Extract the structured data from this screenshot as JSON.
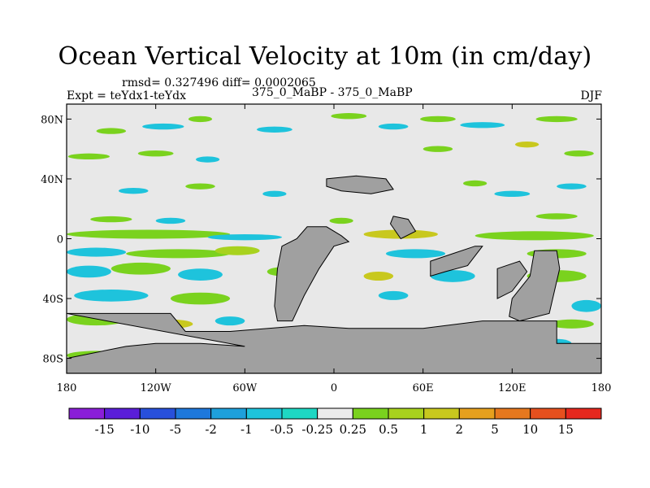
{
  "title": "Ocean Vertical Velocity at 10m (in cm/day)",
  "stats": "rmsd= 0.327496 diff= 0.0002065",
  "experiment": "Expt = teYdx1-teYdx",
  "comparison": "375_0_MaBP - 375_0_MaBP",
  "season": "DJF",
  "y_axis": [
    {
      "label": "80N",
      "lat": 80
    },
    {
      "label": "40N",
      "lat": 40
    },
    {
      "label": "0",
      "lat": 0
    },
    {
      "label": "40S",
      "lat": -40
    },
    {
      "label": "80S",
      "lat": -80
    }
  ],
  "x_axis": [
    {
      "label": "180",
      "lon": -180
    },
    {
      "label": "120W",
      "lon": -120
    },
    {
      "label": "60W",
      "lon": -60
    },
    {
      "label": "0",
      "lon": 0
    },
    {
      "label": "60E",
      "lon": 60
    },
    {
      "label": "120E",
      "lon": 120
    },
    {
      "label": "180",
      "lon": 180
    }
  ],
  "colorbar": {
    "colors": [
      "#8a1ed8",
      "#5a1ed8",
      "#2850dc",
      "#1e78dc",
      "#1ea0dc",
      "#1ec3dc",
      "#1ed7c3",
      "#ebebeb",
      "#7ad21e",
      "#a8d21e",
      "#c8c81e",
      "#e6a01e",
      "#e6781e",
      "#e6501e",
      "#e6281e"
    ],
    "labels": [
      "-15",
      "-10",
      "-5",
      "-2",
      "-1",
      "-0.5",
      "-0.25",
      "0.25",
      "0.5",
      "1",
      "2",
      "5",
      "10",
      "15"
    ]
  },
  "map": {
    "lon_range": [
      -180,
      180
    ],
    "lat_range": [
      -90,
      90
    ],
    "background_color": "#e8e8e8",
    "land_color": "#a0a0a0",
    "colors": {
      "cyan": "#1ec3dc",
      "teal": "#1ed7c3",
      "blue": "#1ea0dc",
      "green": "#7ad21e",
      "lime": "#a8d21e",
      "yellow": "#c8c81e"
    },
    "patches": [
      {
        "color": "green",
        "lon": -150,
        "lat": 72,
        "rx": 10,
        "ry": 2
      },
      {
        "color": "cyan",
        "lon": -115,
        "lat": 75,
        "rx": 14,
        "ry": 2
      },
      {
        "color": "green",
        "lon": -90,
        "lat": 80,
        "rx": 8,
        "ry": 2
      },
      {
        "color": "cyan",
        "lon": -40,
        "lat": 73,
        "rx": 12,
        "ry": 2
      },
      {
        "color": "green",
        "lon": 10,
        "lat": 82,
        "rx": 12,
        "ry": 2
      },
      {
        "color": "cyan",
        "lon": 40,
        "lat": 75,
        "rx": 10,
        "ry": 2
      },
      {
        "color": "green",
        "lon": 70,
        "lat": 80,
        "rx": 12,
        "ry": 2
      },
      {
        "color": "cyan",
        "lon": 100,
        "lat": 76,
        "rx": 15,
        "ry": 2
      },
      {
        "color": "green",
        "lon": 150,
        "lat": 80,
        "rx": 14,
        "ry": 2
      },
      {
        "color": "green",
        "lon": -165,
        "lat": 55,
        "rx": 14,
        "ry": 2
      },
      {
        "color": "green",
        "lon": -120,
        "lat": 57,
        "rx": 12,
        "ry": 2
      },
      {
        "color": "cyan",
        "lon": -85,
        "lat": 53,
        "rx": 8,
        "ry": 2
      },
      {
        "color": "green",
        "lon": 70,
        "lat": 60,
        "rx": 10,
        "ry": 2
      },
      {
        "color": "yellow",
        "lon": 130,
        "lat": 63,
        "rx": 8,
        "ry": 2
      },
      {
        "color": "green",
        "lon": 165,
        "lat": 57,
        "rx": 10,
        "ry": 2
      },
      {
        "color": "cyan",
        "lon": -135,
        "lat": 32,
        "rx": 10,
        "ry": 2
      },
      {
        "color": "green",
        "lon": -90,
        "lat": 35,
        "rx": 10,
        "ry": 2
      },
      {
        "color": "cyan",
        "lon": -40,
        "lat": 30,
        "rx": 8,
        "ry": 2
      },
      {
        "color": "green",
        "lon": 95,
        "lat": 37,
        "rx": 8,
        "ry": 2
      },
      {
        "color": "cyan",
        "lon": 120,
        "lat": 30,
        "rx": 12,
        "ry": 2
      },
      {
        "color": "cyan",
        "lon": 160,
        "lat": 35,
        "rx": 10,
        "ry": 2
      },
      {
        "color": "green",
        "lon": -150,
        "lat": 13,
        "rx": 14,
        "ry": 2
      },
      {
        "color": "cyan",
        "lon": -110,
        "lat": 12,
        "rx": 10,
        "ry": 2
      },
      {
        "color": "green",
        "lon": 5,
        "lat": 12,
        "rx": 8,
        "ry": 2
      },
      {
        "color": "green",
        "lon": 150,
        "lat": 15,
        "rx": 14,
        "ry": 2
      },
      {
        "color": "green",
        "lon": -125,
        "lat": 3,
        "rx": 55,
        "ry": 3
      },
      {
        "color": "cyan",
        "lon": -60,
        "lat": 1,
        "rx": 25,
        "ry": 2
      },
      {
        "color": "yellow",
        "lon": 45,
        "lat": 3,
        "rx": 25,
        "ry": 3
      },
      {
        "color": "green",
        "lon": 135,
        "lat": 2,
        "rx": 40,
        "ry": 3
      },
      {
        "color": "cyan",
        "lon": -160,
        "lat": -9,
        "rx": 20,
        "ry": 3
      },
      {
        "color": "green",
        "lon": -105,
        "lat": -10,
        "rx": 35,
        "ry": 3
      },
      {
        "color": "lime",
        "lon": -65,
        "lat": -8,
        "rx": 15,
        "ry": 3
      },
      {
        "color": "cyan",
        "lon": 55,
        "lat": -10,
        "rx": 20,
        "ry": 3
      },
      {
        "color": "green",
        "lon": 150,
        "lat": -10,
        "rx": 20,
        "ry": 3
      },
      {
        "color": "cyan",
        "lon": -165,
        "lat": -22,
        "rx": 15,
        "ry": 4
      },
      {
        "color": "green",
        "lon": -130,
        "lat": -20,
        "rx": 20,
        "ry": 4
      },
      {
        "color": "cyan",
        "lon": -90,
        "lat": -24,
        "rx": 15,
        "ry": 4
      },
      {
        "color": "green",
        "lon": -35,
        "lat": -22,
        "rx": 10,
        "ry": 3
      },
      {
        "color": "yellow",
        "lon": 30,
        "lat": -25,
        "rx": 10,
        "ry": 3
      },
      {
        "color": "cyan",
        "lon": 80,
        "lat": -25,
        "rx": 15,
        "ry": 4
      },
      {
        "color": "green",
        "lon": 150,
        "lat": -25,
        "rx": 20,
        "ry": 4
      },
      {
        "color": "cyan",
        "lon": -150,
        "lat": -38,
        "rx": 25,
        "ry": 4
      },
      {
        "color": "green",
        "lon": -90,
        "lat": -40,
        "rx": 20,
        "ry": 4
      },
      {
        "color": "cyan",
        "lon": 40,
        "lat": -38,
        "rx": 10,
        "ry": 3
      },
      {
        "color": "cyan",
        "lon": 170,
        "lat": -45,
        "rx": 10,
        "ry": 4
      },
      {
        "color": "green",
        "lon": -160,
        "lat": -54,
        "rx": 20,
        "ry": 4
      },
      {
        "color": "yellow",
        "lon": -110,
        "lat": -57,
        "rx": 15,
        "ry": 3
      },
      {
        "color": "cyan",
        "lon": -70,
        "lat": -55,
        "rx": 10,
        "ry": 3
      },
      {
        "color": "green",
        "lon": 160,
        "lat": -57,
        "rx": 15,
        "ry": 3
      },
      {
        "color": "green",
        "lon": -160,
        "lat": -78,
        "rx": 20,
        "ry": 3
      },
      {
        "color": "cyan",
        "lon": 150,
        "lat": -70,
        "rx": 10,
        "ry": 3
      }
    ],
    "land": [
      [
        [
          -18,
          8
        ],
        [
          -5,
          8
        ],
        [
          5,
          2
        ],
        [
          10,
          -2
        ],
        [
          0,
          -5
        ],
        [
          -10,
          -20
        ],
        [
          -20,
          -38
        ],
        [
          -28,
          -55
        ],
        [
          -38,
          -55
        ],
        [
          -40,
          -45
        ],
        [
          -38,
          -20
        ],
        [
          -35,
          -5
        ],
        [
          -25,
          0
        ]
      ],
      [
        [
          -5,
          40
        ],
        [
          15,
          42
        ],
        [
          35,
          40
        ],
        [
          40,
          33
        ],
        [
          25,
          30
        ],
        [
          5,
          32
        ],
        [
          -5,
          35
        ]
      ],
      [
        [
          40,
          15
        ],
        [
          50,
          13
        ],
        [
          55,
          5
        ],
        [
          45,
          0
        ],
        [
          38,
          10
        ]
      ],
      [
        [
          65,
          -15
        ],
        [
          80,
          -10
        ],
        [
          95,
          -5
        ],
        [
          100,
          -5
        ],
        [
          90,
          -18
        ],
        [
          75,
          -22
        ],
        [
          65,
          -25
        ]
      ],
      [
        [
          110,
          -20
        ],
        [
          125,
          -15
        ],
        [
          130,
          -22
        ],
        [
          120,
          -35
        ],
        [
          110,
          -40
        ]
      ],
      [
        [
          135,
          -8
        ],
        [
          150,
          -8
        ],
        [
          152,
          -20
        ],
        [
          145,
          -50
        ],
        [
          125,
          -55
        ],
        [
          118,
          -52
        ],
        [
          120,
          -40
        ],
        [
          132,
          -25
        ]
      ],
      [
        [
          -180,
          -50
        ],
        [
          -110,
          -50
        ],
        [
          -100,
          -62
        ],
        [
          -70,
          -62
        ],
        [
          -20,
          -58
        ],
        [
          10,
          -60
        ],
        [
          60,
          -60
        ],
        [
          100,
          -55
        ],
        [
          150,
          -55
        ],
        [
          150,
          -70
        ],
        [
          180,
          -70
        ],
        [
          180,
          -90
        ],
        [
          -180,
          -90
        ],
        [
          -180,
          -80
        ],
        [
          -140,
          -72
        ],
        [
          -120,
          -70
        ],
        [
          -90,
          -70
        ],
        [
          -60,
          -72
        ]
      ]
    ]
  }
}
